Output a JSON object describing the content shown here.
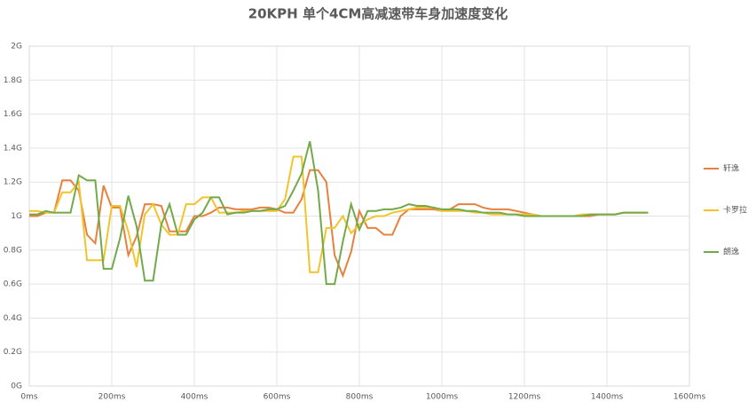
{
  "chart_data": {
    "type": "line",
    "title": "20KPH 单个4CM高减速带车身加速度变化",
    "x": [
      0,
      20,
      40,
      60,
      80,
      100,
      120,
      140,
      160,
      180,
      200,
      220,
      240,
      260,
      280,
      300,
      320,
      340,
      360,
      380,
      400,
      420,
      440,
      460,
      480,
      500,
      520,
      540,
      560,
      580,
      600,
      620,
      640,
      660,
      680,
      700,
      720,
      740,
      760,
      780,
      800,
      820,
      840,
      860,
      880,
      900,
      920,
      940,
      960,
      980,
      1000,
      1020,
      1040,
      1060,
      1080,
      1100,
      1120,
      1140,
      1160,
      1180,
      1200,
      1220,
      1240,
      1260,
      1280,
      1300,
      1320,
      1340,
      1360,
      1380,
      1400,
      1420,
      1440,
      1460,
      1480,
      1500
    ],
    "series": [
      {
        "name": "轩逸",
        "color": "#e8803e",
        "values": [
          1.0,
          1.0,
          1.02,
          1.02,
          1.21,
          1.21,
          1.15,
          0.89,
          0.84,
          1.18,
          1.05,
          1.05,
          0.77,
          0.88,
          1.07,
          1.07,
          1.06,
          0.91,
          0.91,
          0.91,
          1.0,
          1.0,
          1.02,
          1.05,
          1.05,
          1.04,
          1.04,
          1.04,
          1.05,
          1.05,
          1.04,
          1.02,
          1.02,
          1.1,
          1.27,
          1.27,
          1.2,
          0.77,
          0.65,
          0.79,
          1.03,
          0.93,
          0.93,
          0.89,
          0.89,
          1.0,
          1.04,
          1.04,
          1.04,
          1.04,
          1.03,
          1.04,
          1.07,
          1.07,
          1.07,
          1.05,
          1.04,
          1.04,
          1.04,
          1.03,
          1.02,
          1.01,
          1.0,
          1.0,
          1.0,
          1.0,
          1.0,
          1.0,
          1.0,
          1.01,
          1.01,
          1.01,
          1.02,
          1.02,
          1.02,
          1.02
        ]
      },
      {
        "name": "卡罗拉",
        "color": "#f2c42c",
        "values": [
          1.03,
          1.03,
          1.02,
          1.02,
          1.14,
          1.14,
          1.2,
          0.74,
          0.74,
          0.74,
          1.06,
          1.06,
          0.91,
          0.7,
          1.01,
          1.07,
          0.95,
          0.89,
          0.89,
          1.07,
          1.07,
          1.11,
          1.11,
          1.02,
          1.02,
          1.02,
          1.03,
          1.03,
          1.03,
          1.03,
          1.03,
          1.1,
          1.35,
          1.35,
          0.67,
          0.67,
          0.93,
          0.93,
          1.0,
          0.9,
          0.95,
          0.98,
          1.0,
          1.0,
          1.02,
          1.03,
          1.04,
          1.05,
          1.05,
          1.05,
          1.03,
          1.03,
          1.03,
          1.03,
          1.02,
          1.02,
          1.01,
          1.01,
          1.01,
          1.01,
          1.01,
          1.01,
          1.0,
          1.0,
          1.0,
          1.0,
          1.0,
          1.01,
          1.01,
          1.01,
          1.01,
          1.01,
          1.02,
          1.02,
          1.02,
          1.02
        ]
      },
      {
        "name": "朗逸",
        "color": "#72a94a",
        "values": [
          1.01,
          1.01,
          1.03,
          1.02,
          1.02,
          1.02,
          1.24,
          1.21,
          1.21,
          0.69,
          0.69,
          0.87,
          1.12,
          0.94,
          0.62,
          0.62,
          0.95,
          1.07,
          0.89,
          0.89,
          0.98,
          1.02,
          1.11,
          1.11,
          1.01,
          1.02,
          1.02,
          1.03,
          1.03,
          1.04,
          1.04,
          1.06,
          1.15,
          1.25,
          1.44,
          1.15,
          0.6,
          0.6,
          0.85,
          1.07,
          0.92,
          1.03,
          1.03,
          1.04,
          1.04,
          1.05,
          1.07,
          1.06,
          1.06,
          1.05,
          1.04,
          1.04,
          1.04,
          1.03,
          1.03,
          1.02,
          1.02,
          1.02,
          1.01,
          1.01,
          1.0,
          1.0,
          1.0,
          1.0,
          1.0,
          1.0,
          1.0,
          1.0,
          1.01,
          1.01,
          1.01,
          1.01,
          1.02,
          1.02,
          1.02,
          1.02
        ]
      }
    ],
    "xlim": [
      0,
      1600
    ],
    "xticks": [
      {
        "value": 0,
        "label": "0ms"
      },
      {
        "value": 200,
        "label": "200ms"
      },
      {
        "value": 400,
        "label": "400ms"
      },
      {
        "value": 600,
        "label": "600ms"
      },
      {
        "value": 800,
        "label": "800ms"
      },
      {
        "value": 1000,
        "label": "1000ms"
      },
      {
        "value": 1200,
        "label": "1200ms"
      },
      {
        "value": 1400,
        "label": "1400ms"
      },
      {
        "value": 1600,
        "label": "1600ms"
      }
    ],
    "ylim": [
      0,
      2
    ],
    "yticks": [
      {
        "value": 0,
        "label": "0G"
      },
      {
        "value": 0.2,
        "label": "0.2G"
      },
      {
        "value": 0.4,
        "label": "0.4G"
      },
      {
        "value": 0.6,
        "label": "0.6G"
      },
      {
        "value": 0.8,
        "label": "0.8G"
      },
      {
        "value": 1,
        "label": "1G"
      },
      {
        "value": 1.2,
        "label": "1.2G"
      },
      {
        "value": 1.4,
        "label": "1.4G"
      },
      {
        "value": 1.6,
        "label": "1.6G"
      },
      {
        "value": 1.8,
        "label": "1.8G"
      },
      {
        "value": 2,
        "label": "2G"
      }
    ],
    "grid": true,
    "legend": "right"
  }
}
